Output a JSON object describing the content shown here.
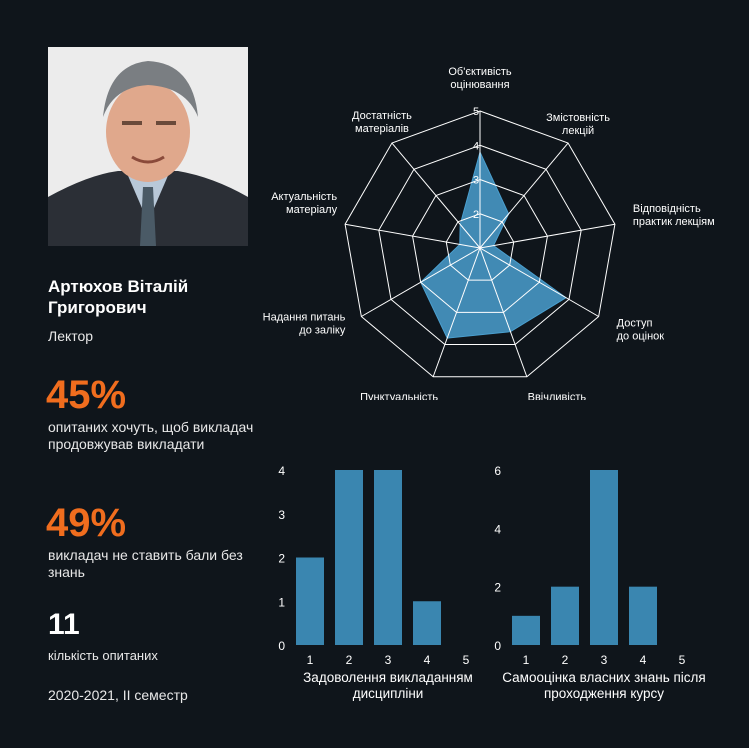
{
  "lecturer": {
    "name": "Артюхов Віталій Григорович",
    "role": "Лектор"
  },
  "stats": {
    "continue_pct": "45%",
    "continue_text": "опитаних хочуть, щоб викладач продовжував викладати",
    "fair_pct": "49%",
    "fair_text": "викладач не ставить бали без знань",
    "respondents": "11",
    "respondents_label": "кількість опитаних",
    "semester": "2020-2021, ІІ семестр"
  },
  "colors": {
    "background": "#0f151b",
    "accent": "#f06d1e",
    "bar": "#3a86b0",
    "radar_fill": "#4a9fcf",
    "grid": "#ffffff"
  },
  "chart_data": [
    {
      "type": "radar",
      "axes": [
        "Об'єктивість оцінювання",
        "Змістовність лекцій",
        "Відповідність практик лекціям",
        "Доступ до оцінок",
        "Ввічливість",
        "Пунктуальність",
        "Надання питань до заліку",
        "Актуальність матеріалу",
        "Достатність матеріалів"
      ],
      "values": [
        3.8,
        2.3,
        1.4,
        3.9,
        3.6,
        3.8,
        3.0,
        1.6,
        1.9
      ],
      "rlim": [
        1,
        5
      ],
      "ticks": [
        "2",
        "3",
        "4",
        "5"
      ],
      "grid": true
    },
    {
      "type": "bar",
      "title": "Задоволення викладанням дисципліни",
      "categories": [
        "1",
        "2",
        "3",
        "4",
        "5"
      ],
      "values": [
        2,
        4,
        4,
        1,
        0
      ],
      "yticks": [
        "0",
        "1",
        "2",
        "3",
        "4"
      ],
      "ylim": [
        0,
        4
      ]
    },
    {
      "type": "bar",
      "title": "Самооцінка власних знань після проходження курсу",
      "categories": [
        "1",
        "2",
        "3",
        "4",
        "5"
      ],
      "values": [
        1,
        2,
        6,
        2,
        0
      ],
      "yticks": [
        "0",
        "2",
        "4",
        "6"
      ],
      "ylim": [
        0,
        6
      ]
    }
  ]
}
